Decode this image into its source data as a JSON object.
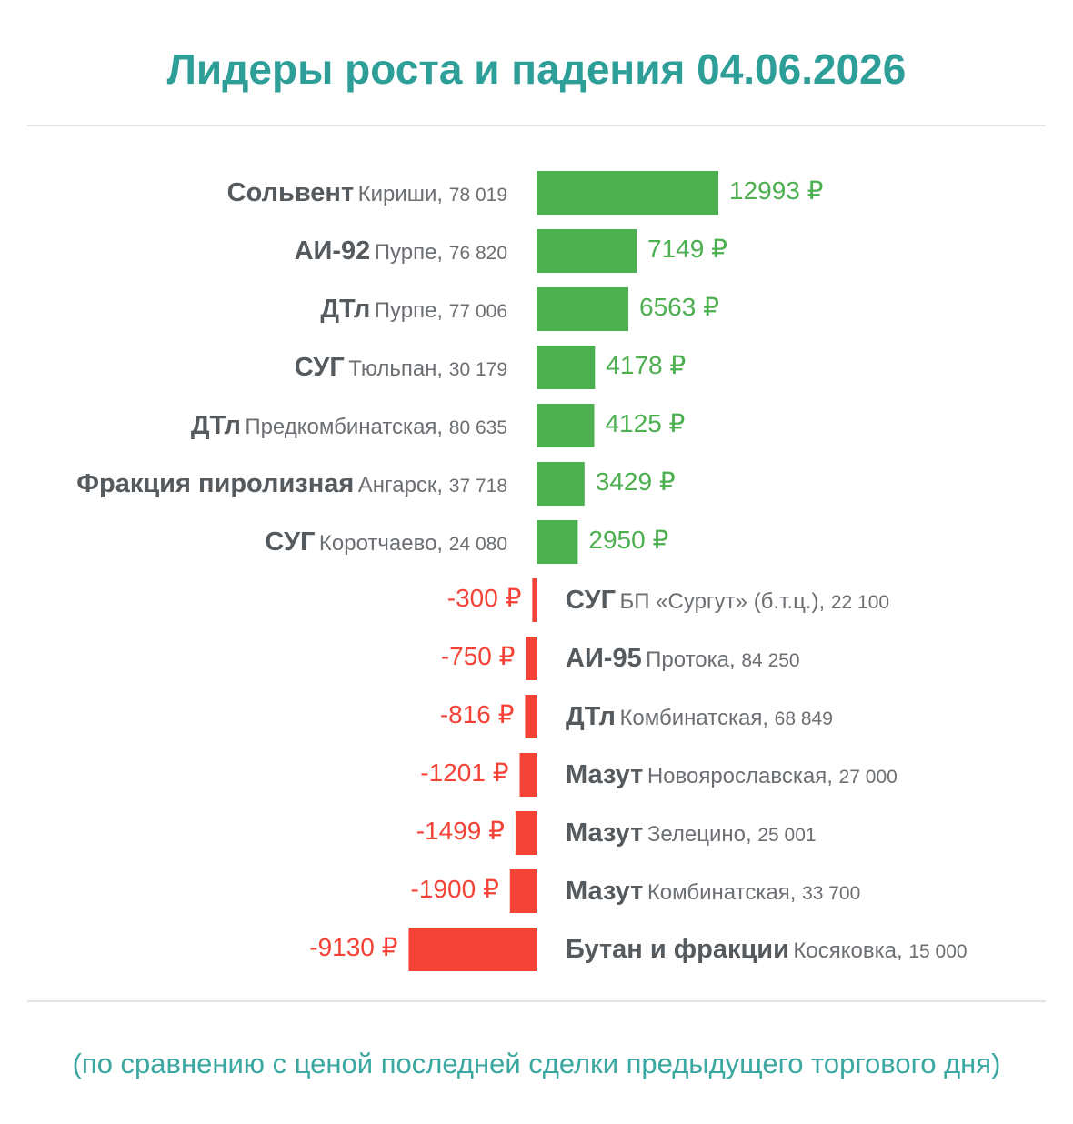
{
  "title": "Лидеры роста и падения 04.06.2026",
  "footnote": "(по сравнению с ценой последней сделки предыдущего торгового дня)",
  "colors": {
    "title": "#2e9e98",
    "footnote": "#3aa8a0",
    "positive": "#4caf50",
    "negative": "#f44336"
  },
  "chart_data": {
    "type": "bar",
    "orientation": "horizontal",
    "value_suffix": " ₽",
    "rows": [
      {
        "name": "Сольвент",
        "place": "Кириши",
        "volume": "78 019",
        "value": 12993,
        "value_label": "12993 ₽"
      },
      {
        "name": "АИ-92",
        "place": "Пурпе",
        "volume": "76 820",
        "value": 7149,
        "value_label": "7149 ₽"
      },
      {
        "name": "ДТл",
        "place": "Пурпе",
        "volume": "77 006",
        "value": 6563,
        "value_label": "6563 ₽"
      },
      {
        "name": "СУГ",
        "place": "Тюльпан",
        "volume": "30 179",
        "value": 4178,
        "value_label": "4178 ₽"
      },
      {
        "name": "ДТл",
        "place": "Предкомбинатская",
        "volume": "80 635",
        "value": 4125,
        "value_label": "4125 ₽"
      },
      {
        "name": "Фракция пиролизная",
        "place": "Ангарск",
        "volume": "37 718",
        "value": 3429,
        "value_label": "3429 ₽"
      },
      {
        "name": "СУГ",
        "place": "Коротчаево",
        "volume": "24 080",
        "value": 2950,
        "value_label": "2950 ₽"
      },
      {
        "name": "СУГ",
        "place": "БП «Сургут» (б.т.ц.)",
        "volume": "22 100",
        "value": -300,
        "value_label": "-300 ₽"
      },
      {
        "name": "АИ-95",
        "place": "Протока",
        "volume": "84 250",
        "value": -750,
        "value_label": "-750 ₽"
      },
      {
        "name": "ДТл",
        "place": "Комбинатская",
        "volume": "68 849",
        "value": -816,
        "value_label": "-816 ₽"
      },
      {
        "name": "Мазут",
        "place": "Новоярославская",
        "volume": "27 000",
        "value": -1201,
        "value_label": "-1201 ₽"
      },
      {
        "name": "Мазут",
        "place": "Зелецино",
        "volume": "25 001",
        "value": -1499,
        "value_label": "-1499 ₽"
      },
      {
        "name": "Мазут",
        "place": "Комбинатская",
        "volume": "33 700",
        "value": -1900,
        "value_label": "-1900 ₽"
      },
      {
        "name": "Бутан и фракции",
        "place": "Косяковка",
        "volume": "15 000",
        "value": -9130,
        "value_label": "-9130 ₽"
      }
    ]
  }
}
